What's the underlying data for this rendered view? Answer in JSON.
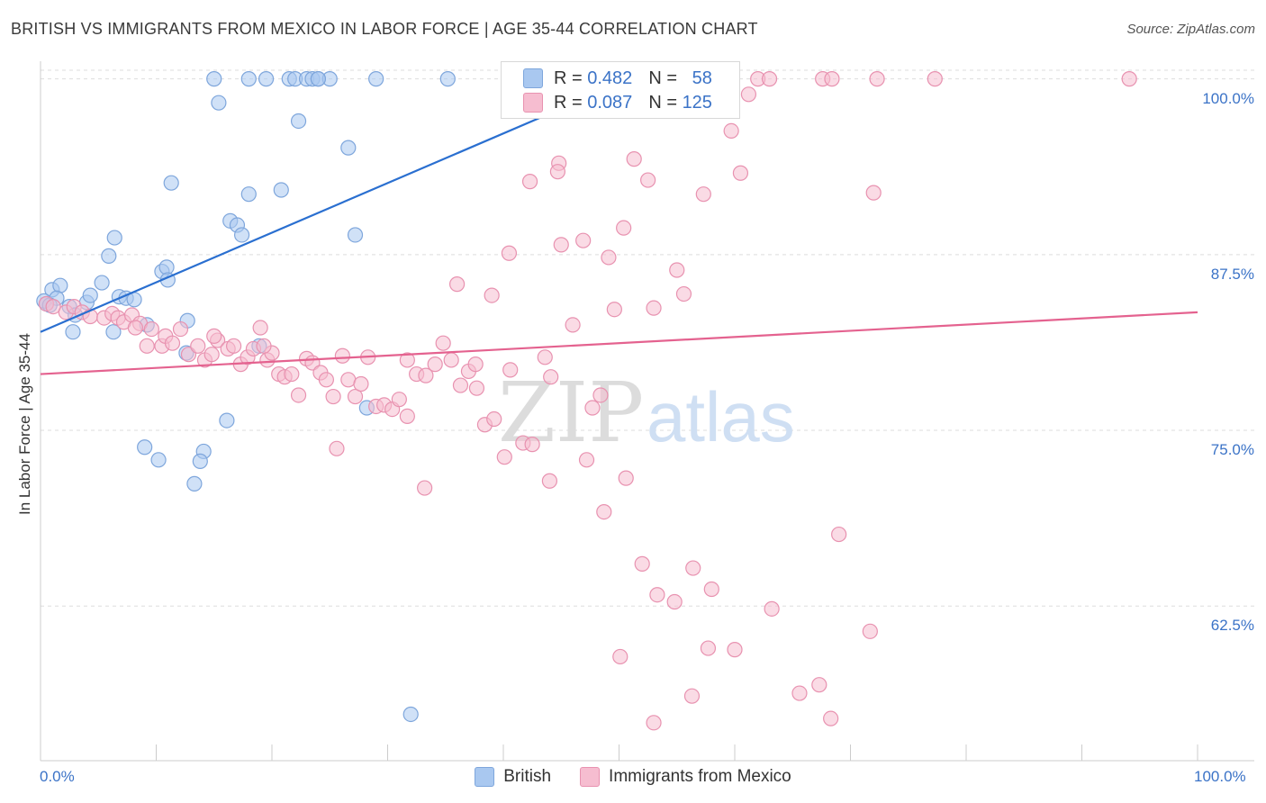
{
  "title": "BRITISH VS IMMIGRANTS FROM MEXICO IN LABOR FORCE | AGE 35-44 CORRELATION CHART",
  "source": "Source: ZipAtlas.com",
  "watermark": {
    "zip": "ZIP",
    "atlas": "atlas"
  },
  "legend_top": [
    {
      "r_label": "R =",
      "r_value": "0.482",
      "n_label": "N =",
      "n_value": "58"
    },
    {
      "r_label": "R =",
      "r_value": "0.087",
      "n_label": "N =",
      "n_value": "125"
    }
  ],
  "chart_data": {
    "type": "scatter",
    "title": "BRITISH VS IMMIGRANTS FROM MEXICO IN LABOR FORCE | AGE 35-44 CORRELATION CHART",
    "xlabel": "",
    "ylabel": "In Labor Force | Age 35-44",
    "xlim": [
      0,
      100
    ],
    "ylim": [
      51.5,
      101
    ],
    "x_tick_labels": [
      "0.0%",
      "100.0%"
    ],
    "y_ticks": [
      62.5,
      75.0,
      87.5,
      100.0
    ],
    "y_tick_labels": [
      "62.5%",
      "75.0%",
      "87.5%",
      "100.0%"
    ],
    "grid": true,
    "legend_position": "bottom",
    "series": [
      {
        "name": "British",
        "color": "#a9c8f0",
        "stroke": "#7ea6dc",
        "trend_color": "#2a6fd0",
        "trend": [
          [
            0,
            82.0
          ],
          [
            51,
            100.0
          ]
        ],
        "points": [
          [
            0.5,
            84.0
          ],
          [
            1.0,
            85.0
          ],
          [
            1.7,
            85.3
          ],
          [
            2.5,
            83.8
          ],
          [
            3.0,
            83.2
          ],
          [
            2.8,
            82.0
          ],
          [
            4.0,
            84.1
          ],
          [
            4.3,
            84.6
          ],
          [
            5.3,
            85.5
          ],
          [
            6.3,
            82.0
          ],
          [
            5.9,
            87.4
          ],
          [
            6.4,
            88.7
          ],
          [
            6.8,
            84.5
          ],
          [
            7.4,
            84.4
          ],
          [
            8.1,
            84.3
          ],
          [
            9.2,
            82.5
          ],
          [
            10.5,
            86.3
          ],
          [
            10.9,
            86.6
          ],
          [
            11.0,
            85.7
          ],
          [
            12.7,
            82.8
          ],
          [
            12.6,
            80.5
          ],
          [
            11.3,
            92.6
          ],
          [
            15.4,
            98.3
          ],
          [
            15.0,
            100.0
          ],
          [
            18.0,
            100.0
          ],
          [
            19.5,
            100.0
          ],
          [
            21.5,
            100.0
          ],
          [
            22.0,
            100.0
          ],
          [
            23.0,
            100.0
          ],
          [
            23.5,
            100.0
          ],
          [
            24.0,
            100.0
          ],
          [
            25.0,
            100.0
          ],
          [
            29.0,
            100.0
          ],
          [
            35.2,
            100.0
          ],
          [
            18.0,
            91.8
          ],
          [
            20.8,
            92.1
          ],
          [
            16.4,
            89.9
          ],
          [
            17.0,
            89.6
          ],
          [
            17.4,
            88.9
          ],
          [
            22.3,
            97.0
          ],
          [
            26.6,
            95.1
          ],
          [
            27.2,
            88.9
          ],
          [
            18.9,
            81.0
          ],
          [
            28.2,
            76.6
          ],
          [
            16.1,
            75.7
          ],
          [
            9.0,
            73.8
          ],
          [
            10.2,
            72.9
          ],
          [
            14.1,
            73.5
          ],
          [
            13.8,
            72.8
          ],
          [
            13.3,
            71.2
          ],
          [
            32.0,
            54.8
          ],
          [
            0.3,
            84.2
          ],
          [
            1.4,
            84.4
          ],
          [
            0.8,
            83.9
          ],
          [
            53.0,
            100.0
          ],
          [
            41.5,
            100.0
          ],
          [
            47.3,
            100.0
          ],
          [
            24.0,
            100.0
          ]
        ]
      },
      {
        "name": "Immigrants from Mexico",
        "color": "#f6bdd0",
        "stroke": "#e892b0",
        "trend_color": "#e4628f",
        "trend": [
          [
            0,
            79.0
          ],
          [
            100,
            83.4
          ]
        ],
        "points": [
          [
            0.5,
            84.0
          ],
          [
            1.1,
            83.8
          ],
          [
            2.2,
            83.4
          ],
          [
            2.9,
            83.8
          ],
          [
            3.6,
            83.4
          ],
          [
            4.3,
            83.1
          ],
          [
            5.5,
            83.0
          ],
          [
            6.2,
            83.3
          ],
          [
            6.7,
            83.0
          ],
          [
            7.2,
            82.7
          ],
          [
            7.9,
            83.2
          ],
          [
            8.6,
            82.6
          ],
          [
            8.2,
            82.3
          ],
          [
            9.2,
            81.0
          ],
          [
            9.6,
            82.2
          ],
          [
            10.5,
            81.0
          ],
          [
            10.8,
            81.7
          ],
          [
            11.4,
            81.2
          ],
          [
            12.1,
            82.2
          ],
          [
            12.8,
            80.4
          ],
          [
            13.6,
            81.0
          ],
          [
            14.2,
            80.0
          ],
          [
            14.8,
            80.4
          ],
          [
            15.3,
            81.4
          ],
          [
            16.2,
            80.8
          ],
          [
            16.7,
            81.0
          ],
          [
            17.3,
            79.7
          ],
          [
            17.9,
            80.2
          ],
          [
            18.4,
            80.8
          ],
          [
            19.0,
            82.3
          ],
          [
            19.6,
            80.0
          ],
          [
            20.0,
            80.5
          ],
          [
            20.6,
            79.0
          ],
          [
            21.1,
            78.8
          ],
          [
            21.7,
            79.0
          ],
          [
            22.3,
            77.5
          ],
          [
            23.0,
            80.1
          ],
          [
            23.5,
            79.8
          ],
          [
            24.2,
            79.1
          ],
          [
            24.7,
            78.6
          ],
          [
            25.3,
            77.4
          ],
          [
            26.1,
            80.3
          ],
          [
            26.6,
            78.6
          ],
          [
            27.2,
            77.4
          ],
          [
            27.7,
            78.3
          ],
          [
            28.3,
            80.2
          ],
          [
            29.0,
            76.7
          ],
          [
            29.7,
            76.8
          ],
          [
            30.4,
            76.5
          ],
          [
            31.0,
            77.2
          ],
          [
            31.7,
            80.0
          ],
          [
            32.5,
            79.0
          ],
          [
            33.3,
            78.9
          ],
          [
            34.1,
            79.7
          ],
          [
            34.8,
            81.2
          ],
          [
            35.5,
            80.0
          ],
          [
            36.3,
            78.2
          ],
          [
            37.0,
            79.2
          ],
          [
            37.6,
            79.7
          ],
          [
            38.4,
            75.4
          ],
          [
            39.2,
            75.8
          ],
          [
            39.0,
            84.6
          ],
          [
            40.1,
            73.1
          ],
          [
            41.7,
            74.1
          ],
          [
            40.5,
            87.6
          ],
          [
            42.5,
            74.0
          ],
          [
            43.6,
            80.2
          ],
          [
            44.1,
            78.8
          ],
          [
            44.8,
            94.0
          ],
          [
            45.0,
            88.2
          ],
          [
            46.0,
            82.5
          ],
          [
            46.9,
            88.5
          ],
          [
            47.7,
            76.6
          ],
          [
            48.4,
            77.5
          ],
          [
            49.1,
            87.3
          ],
          [
            49.6,
            83.6
          ],
          [
            50.4,
            89.4
          ],
          [
            51.3,
            94.3
          ],
          [
            52.5,
            92.8
          ],
          [
            53.0,
            83.7
          ],
          [
            55.0,
            86.4
          ],
          [
            55.6,
            84.7
          ],
          [
            57.3,
            91.8
          ],
          [
            59.7,
            96.3
          ],
          [
            60.5,
            93.3
          ],
          [
            58.0,
            100.0
          ],
          [
            62.0,
            100.0
          ],
          [
            63.0,
            100.0
          ],
          [
            67.6,
            100.0
          ],
          [
            68.4,
            100.0
          ],
          [
            72.3,
            100.0
          ],
          [
            77.3,
            100.0
          ],
          [
            94.1,
            100.0
          ],
          [
            31.7,
            76.0
          ],
          [
            33.2,
            70.9
          ],
          [
            37.7,
            78.0
          ],
          [
            40.6,
            79.3
          ],
          [
            44.0,
            71.4
          ],
          [
            47.2,
            72.9
          ],
          [
            48.7,
            69.2
          ],
          [
            50.6,
            71.6
          ],
          [
            52.0,
            65.5
          ],
          [
            53.3,
            63.3
          ],
          [
            54.8,
            62.8
          ],
          [
            56.4,
            65.2
          ],
          [
            58.0,
            63.7
          ],
          [
            60.0,
            59.4
          ],
          [
            63.2,
            62.3
          ],
          [
            65.6,
            56.3
          ],
          [
            67.3,
            56.9
          ],
          [
            68.3,
            54.5
          ],
          [
            69.0,
            67.6
          ],
          [
            71.7,
            60.7
          ],
          [
            72.0,
            91.9
          ],
          [
            50.1,
            58.9
          ],
          [
            53.0,
            54.2
          ],
          [
            56.3,
            56.1
          ],
          [
            57.7,
            59.5
          ],
          [
            61.2,
            98.9
          ],
          [
            25.6,
            73.7
          ],
          [
            36.0,
            85.4
          ],
          [
            42.3,
            92.7
          ],
          [
            44.7,
            93.4
          ],
          [
            15.0,
            81.7
          ],
          [
            19.3,
            81.0
          ]
        ]
      }
    ]
  },
  "legend_bottom": [
    {
      "label": "British",
      "color": "#a9c8f0",
      "stroke": "#7ea6dc"
    },
    {
      "label": "Immigrants from Mexico",
      "color": "#f6bdd0",
      "stroke": "#e892b0"
    }
  ]
}
